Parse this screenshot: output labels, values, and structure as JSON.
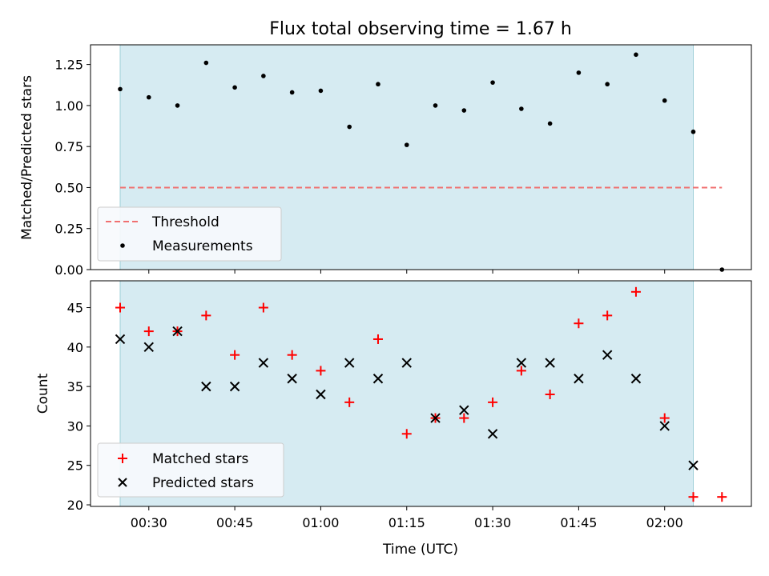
{
  "chart_data": [
    {
      "type": "scatter",
      "title": "Flux total observing time = 1.67 h",
      "ylabel": "Matched/Predicted stars",
      "ylim": [
        0,
        1.37
      ],
      "yticks": [
        "0.00",
        "0.25",
        "0.50",
        "0.75",
        "1.00",
        "1.25"
      ],
      "ytick_values": [
        0,
        0.25,
        0.5,
        0.75,
        1.0,
        1.25
      ],
      "threshold": 0.5,
      "legend_position": "lower-left",
      "legend": [
        "Threshold",
        "Measurements"
      ],
      "threshold_color": "#f07070",
      "marker_color": "#000000",
      "shade_color": "#add8e6",
      "series": [
        {
          "name": "Measurements",
          "x": [
            "00:25",
            "00:30",
            "00:35",
            "00:40",
            "00:45",
            "00:50",
            "00:55",
            "01:00",
            "01:05",
            "01:10",
            "01:15",
            "01:20",
            "01:25",
            "01:30",
            "01:35",
            "01:40",
            "01:45",
            "01:50",
            "01:55",
            "02:00",
            "02:05",
            "02:10"
          ],
          "values": [
            1.1,
            1.05,
            1.0,
            1.26,
            1.11,
            1.18,
            1.08,
            1.09,
            0.87,
            1.13,
            0.76,
            1.0,
            0.97,
            1.14,
            0.98,
            0.89,
            1.2,
            1.13,
            1.31,
            1.03,
            0.84,
            0.0
          ]
        }
      ]
    },
    {
      "type": "scatter",
      "xlabel": "Time (UTC)",
      "ylabel": "Count",
      "ylim": [
        19.8,
        48.4
      ],
      "yticks": [
        "20",
        "25",
        "30",
        "35",
        "40",
        "45"
      ],
      "ytick_values": [
        20,
        25,
        30,
        35,
        40,
        45
      ],
      "xticks": [
        "00:30",
        "00:45",
        "01:00",
        "01:15",
        "01:30",
        "01:45",
        "02:00"
      ],
      "legend_position": "lower-left",
      "legend": [
        "Matched stars",
        "Predicted stars"
      ],
      "matched_color": "#ff0000",
      "predicted_color": "#000000",
      "series": [
        {
          "name": "Matched stars",
          "x": [
            "00:25",
            "00:30",
            "00:35",
            "00:40",
            "00:45",
            "00:50",
            "00:55",
            "01:00",
            "01:05",
            "01:10",
            "01:15",
            "01:20",
            "01:25",
            "01:30",
            "01:35",
            "01:40",
            "01:45",
            "01:50",
            "01:55",
            "02:00",
            "02:05",
            "02:10"
          ],
          "values": [
            45,
            42,
            42,
            44,
            39,
            45,
            39,
            37,
            33,
            41,
            29,
            31,
            31,
            33,
            37,
            34,
            43,
            44,
            47,
            31,
            21,
            21
          ]
        },
        {
          "name": "Predicted stars",
          "x": [
            "00:25",
            "00:30",
            "00:35",
            "00:40",
            "00:45",
            "00:50",
            "00:55",
            "01:00",
            "01:05",
            "01:10",
            "01:15",
            "01:20",
            "01:25",
            "01:30",
            "01:35",
            "01:40",
            "01:45",
            "01:50",
            "01:55",
            "02:00",
            "02:05"
          ],
          "values": [
            41,
            40,
            42,
            35,
            35,
            38,
            36,
            34,
            38,
            36,
            38,
            31,
            32,
            29,
            38,
            38,
            36,
            39,
            36,
            30,
            25
          ]
        }
      ],
      "shade_start": "00:25",
      "shade_end": "02:05"
    }
  ]
}
